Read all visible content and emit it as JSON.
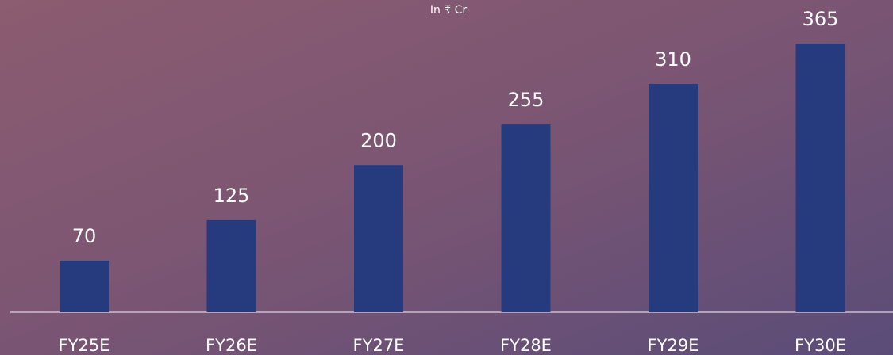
{
  "chart_data": {
    "type": "bar",
    "subtitle": "In ₹ Cr",
    "categories": [
      "FY25E",
      "FY26E",
      "FY27E",
      "FY28E",
      "FY29E",
      "FY30E"
    ],
    "values": [
      70,
      125,
      200,
      255,
      310,
      365
    ],
    "color": "#263a7e",
    "ylim": [
      0,
      400
    ]
  }
}
